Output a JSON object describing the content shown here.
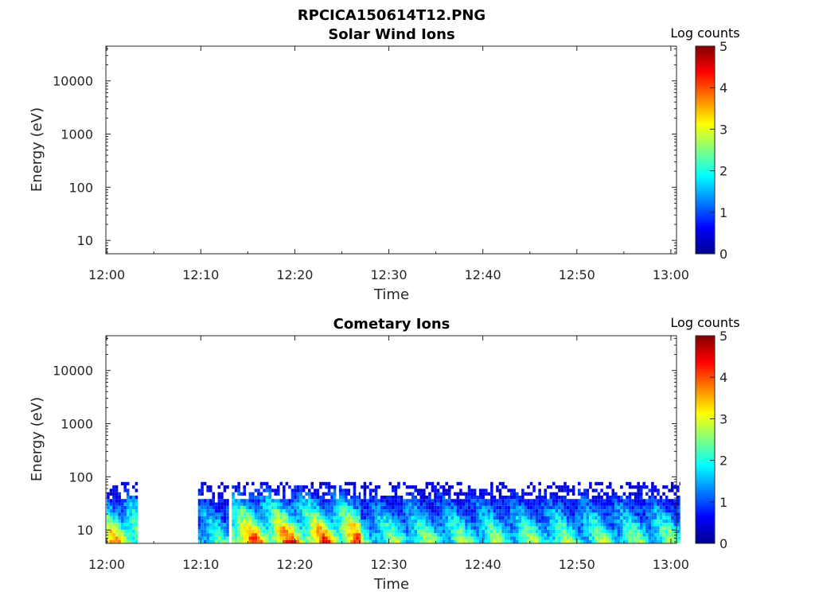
{
  "figure_title": "RPCICA150614T12.PNG",
  "colormap": [
    "#00008f",
    "#0000ff",
    "#0080ff",
    "#00ffff",
    "#80ff80",
    "#ffff00",
    "#ff8000",
    "#ff0000",
    "#800000"
  ],
  "chart_data": [
    {
      "type": "heatmap",
      "title": "Solar Wind Ions",
      "xlabel": "Time",
      "ylabel": "Energy (eV)",
      "xticks": [
        "12:00",
        "12:10",
        "12:20",
        "12:30",
        "12:40",
        "12:50",
        "13:00"
      ],
      "yticks": [
        "10",
        "100",
        "1000",
        "10000"
      ],
      "yscale": "log",
      "colorbar_label": "Log counts",
      "colorbar_ticks": [
        "0",
        "1",
        "2",
        "3",
        "4",
        "5"
      ],
      "clim": [
        0,
        5
      ],
      "data_present": false
    },
    {
      "type": "heatmap",
      "title": "Cometary Ions",
      "xlabel": "Time",
      "ylabel": "Energy (eV)",
      "xticks": [
        "12:00",
        "12:10",
        "12:20",
        "12:30",
        "12:40",
        "12:50",
        "13:00"
      ],
      "yticks": [
        "10",
        "100",
        "1000",
        "10000"
      ],
      "yscale": "log",
      "colorbar_label": "Log counts",
      "colorbar_ticks": [
        "0",
        "1",
        "2",
        "3",
        "4",
        "5"
      ],
      "clim": [
        0,
        5
      ],
      "data_present": true,
      "data_gaps_minutes": [
        [
          3.3,
          9.7
        ],
        [
          13.0,
          13.3
        ]
      ],
      "max_energy_eV": 80,
      "segments": [
        {
          "start_min": 0.0,
          "end_min": 3.3,
          "peak_log_counts": 3.8
        },
        {
          "start_min": 9.7,
          "end_min": 13.0,
          "peak_log_counts": 2.5
        },
        {
          "start_min": 13.3,
          "end_min": 27.0,
          "peak_log_counts": 4.3
        },
        {
          "start_min": 27.0,
          "end_min": 61.0,
          "peak_log_counts": 2.8
        }
      ]
    }
  ]
}
